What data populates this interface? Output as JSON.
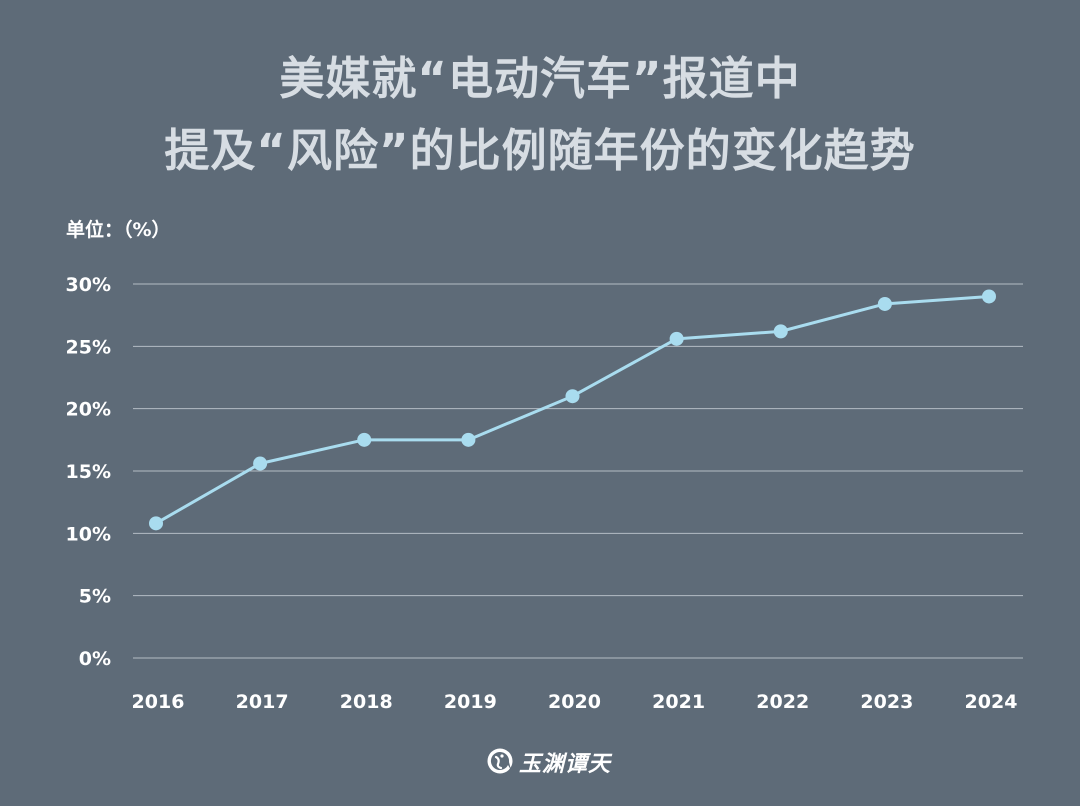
{
  "title": {
    "line1": "美媒就“电动汽车”报道中",
    "line2": "提及“风险”的比例随年份的变化趋势"
  },
  "unit_label": "单位：（%）",
  "logo": {
    "text": "玉渊谭天",
    "icon": "yuyuan-tantian-logo-icon"
  },
  "colors": {
    "background": "#5e6b78",
    "line": "#a9dcef",
    "grid": "#b4bcc5",
    "title": "#d7dde3"
  },
  "chart_data": {
    "type": "line",
    "title": "美媒就“电动汽车”报道中提及“风险”的比例随年份的变化趋势",
    "ylabel": "单位：（%）",
    "xlabel": "",
    "categories": [
      "2016",
      "2017",
      "2018",
      "2019",
      "2020",
      "2021",
      "2022",
      "2023",
      "2024"
    ],
    "series": [
      {
        "values": [
          10.8,
          15.6,
          17.5,
          17.5,
          21.0,
          25.6,
          26.2,
          28.4,
          29.0
        ]
      }
    ],
    "ylim": [
      0,
      30
    ],
    "yticks": [
      0,
      5,
      10,
      15,
      20,
      25,
      30
    ],
    "ytick_labels": [
      "0%",
      "5%",
      "10%",
      "15%",
      "20%",
      "25%",
      "30%"
    ],
    "grid": true,
    "legend": "none"
  }
}
